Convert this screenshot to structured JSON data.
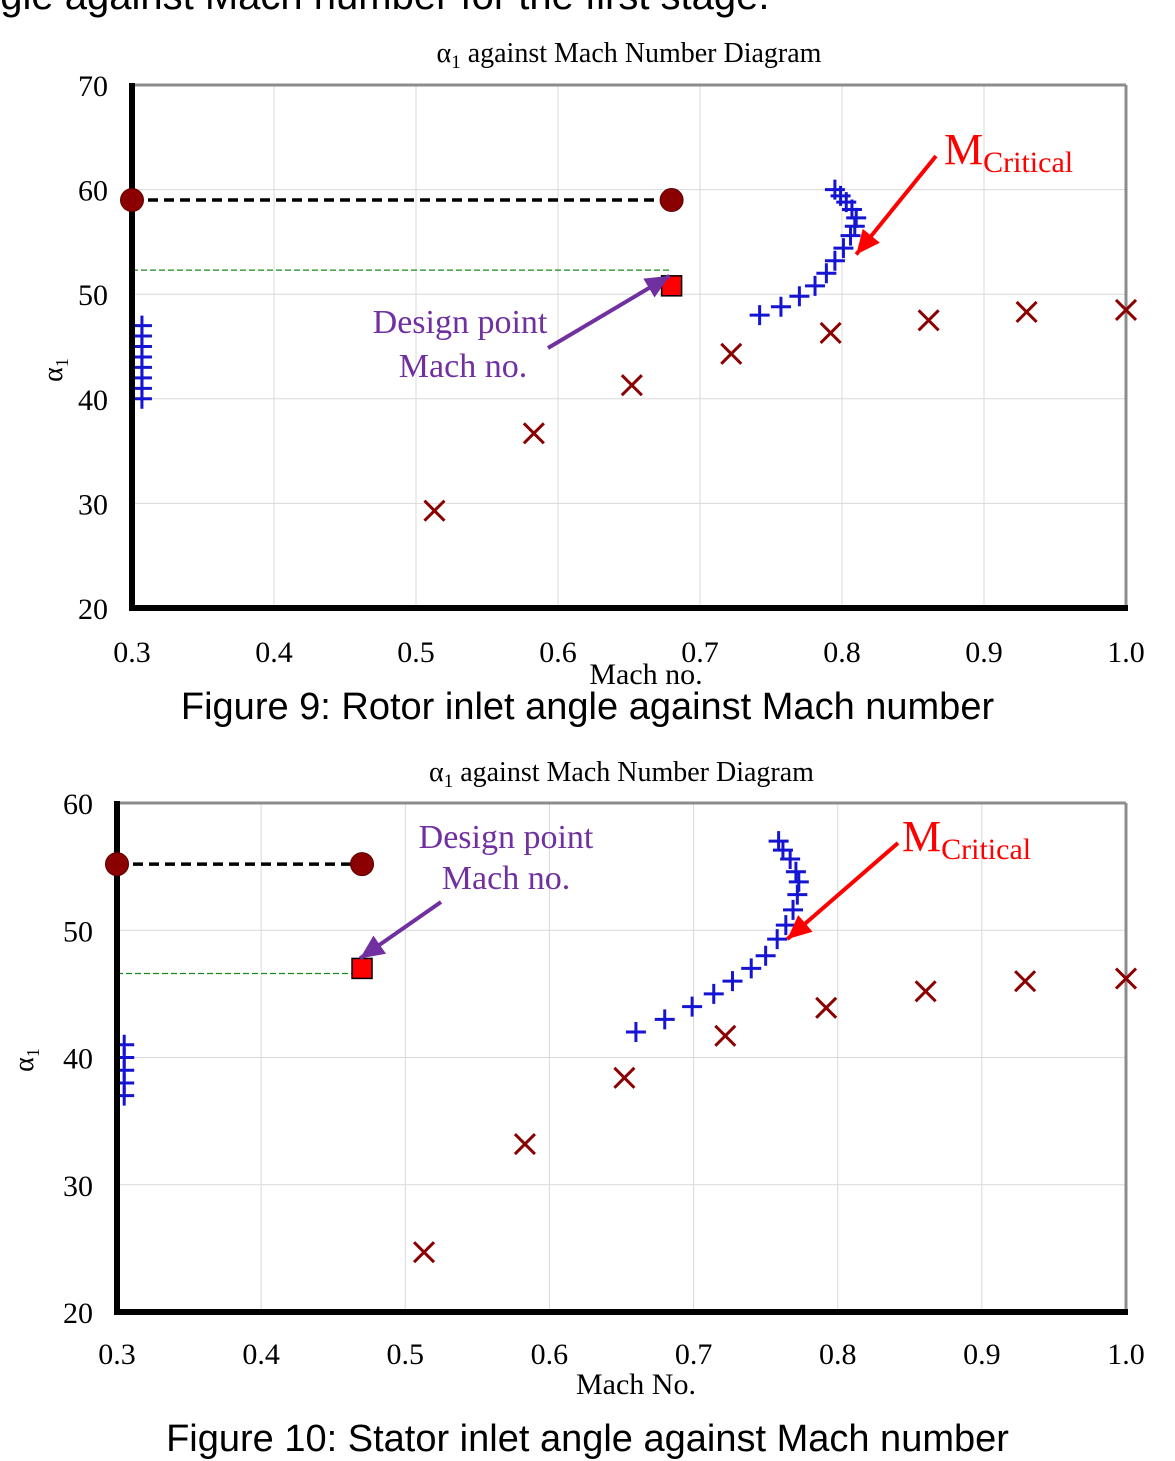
{
  "header_text": "ngle against Mach number for the first stage.",
  "colors": {
    "series_a": "#1414d2",
    "series_b": "#8b0000",
    "design_marker": "#ff0000",
    "annotation_purple": "#7030a0",
    "annotation_red": "#ff0000",
    "ref_line": "#1a8a1a"
  },
  "figures": [
    {
      "caption": "Figure 9: Rotor inlet angle against Mach number",
      "title_prefix": "α",
      "title_sub": "1",
      "title_rest": " against Mach Number Diagram",
      "ylabel": "α",
      "ylabel_sub": "1",
      "xlabel": "Mach  no.",
      "annotation_design": [
        "Design point",
        "Mach no."
      ],
      "annotation_critical_main": "M",
      "annotation_critical_sub": "Critical"
    },
    {
      "caption": "Figure 10: Stator inlet angle against Mach number",
      "title_prefix": "α",
      "title_sub": "1",
      "title_rest": " against Mach Number Diagram",
      "ylabel": "α",
      "ylabel_sub": "1",
      "xlabel": "Mach  No.",
      "annotation_design": [
        "Design point",
        "Mach no."
      ],
      "annotation_critical_main": "M",
      "annotation_critical_sub": "Critical"
    }
  ],
  "chart_data": [
    {
      "type": "scatter",
      "title": "α1 against Mach Number Diagram",
      "xlabel": "Mach  no.",
      "ylabel": "α1",
      "xlim": [
        0.3,
        1.0
      ],
      "ylim": [
        20,
        70
      ],
      "x_ticks": [
        "0.3",
        "0.4",
        "0.5",
        "0.6",
        "0.7",
        "0.8",
        "0.9",
        "1.0"
      ],
      "y_ticks": [
        "20",
        "30",
        "40",
        "50",
        "60",
        "70"
      ],
      "grid": true,
      "series": [
        {
          "name": "plus",
          "marker": "plus",
          "x": [
            0.307,
            0.307,
            0.307,
            0.307,
            0.307,
            0.307,
            0.307,
            0.307,
            0.742,
            0.757,
            0.77,
            0.781,
            0.789,
            0.795,
            0.801,
            0.806,
            0.809,
            0.81,
            0.807,
            0.803,
            0.799,
            0.795
          ],
          "y": [
            40,
            41,
            42,
            43,
            44,
            45,
            46,
            47,
            48,
            48.8,
            49.8,
            50.8,
            52,
            53.2,
            54.4,
            55.6,
            56.5,
            57.3,
            58.1,
            58.8,
            59.4,
            60
          ]
        },
        {
          "name": "x",
          "marker": "x",
          "x": [
            0.513,
            0.583,
            0.652,
            0.722,
            0.792,
            0.861,
            0.93,
            1.0
          ],
          "y": [
            29.3,
            36.7,
            41.3,
            44.3,
            46.3,
            47.5,
            48.3,
            48.5
          ]
        },
        {
          "name": "dashed_reference",
          "marker": "circle",
          "x": [
            0.3,
            0.68
          ],
          "y": [
            59,
            59
          ]
        },
        {
          "name": "design_point",
          "marker": "square",
          "x": [
            0.68
          ],
          "y": [
            50.8
          ]
        }
      ],
      "reference_line_y": 52.3,
      "annotations": [
        {
          "text": "Design point Mach no.",
          "target": [
            0.68,
            50.8
          ]
        },
        {
          "text": "MCritical",
          "target": [
            0.81,
            53.8
          ]
        }
      ]
    },
    {
      "type": "scatter",
      "title": "α1 against Mach Number Diagram",
      "xlabel": "Mach  No.",
      "ylabel": "α1",
      "xlim": [
        0.3,
        1.0
      ],
      "ylim": [
        20,
        60
      ],
      "x_ticks": [
        "0.3",
        "0.4",
        "0.5",
        "0.6",
        "0.7",
        "0.8",
        "0.9",
        "1.0"
      ],
      "y_ticks": [
        "20",
        "30",
        "40",
        "50",
        "60"
      ],
      "grid": true,
      "series": [
        {
          "name": "plus",
          "marker": "plus",
          "x": [
            0.305,
            0.305,
            0.305,
            0.305,
            0.305,
            0.66,
            0.68,
            0.699,
            0.714,
            0.727,
            0.74,
            0.75,
            0.758,
            0.764,
            0.769,
            0.772,
            0.773,
            0.771,
            0.767,
            0.762,
            0.759
          ],
          "y": [
            37,
            38,
            39,
            40,
            41,
            42,
            43,
            44,
            45,
            46,
            47,
            48,
            49.3,
            50.4,
            51.6,
            52.8,
            53.8,
            54.6,
            55.6,
            56.3,
            57
          ]
        },
        {
          "name": "x",
          "marker": "x",
          "x": [
            0.513,
            0.583,
            0.652,
            0.722,
            0.792,
            0.861,
            0.93,
            1.0
          ],
          "y": [
            24.7,
            33.2,
            38.4,
            41.7,
            43.9,
            45.2,
            46,
            46.2
          ]
        },
        {
          "name": "dashed_reference",
          "marker": "circle",
          "x": [
            0.3,
            0.47
          ],
          "y": [
            55.2,
            55.2
          ]
        },
        {
          "name": "design_point",
          "marker": "square",
          "x": [
            0.47
          ],
          "y": [
            47
          ]
        }
      ],
      "reference_line_y": 46.6,
      "annotations": [
        {
          "text": "Design point Mach no.",
          "target": [
            0.47,
            47
          ]
        },
        {
          "text": "MCritical",
          "target": [
            0.765,
            49.3
          ]
        }
      ]
    }
  ]
}
